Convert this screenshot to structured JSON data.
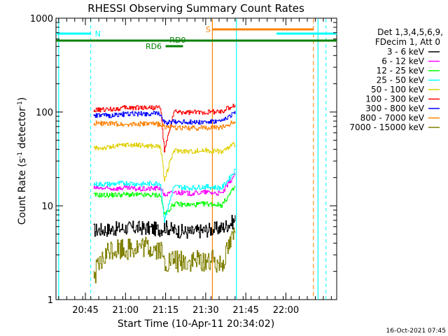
{
  "chart_data": {
    "type": "line",
    "title": "RHESSI Observing Summary Count Rates",
    "xlabel": "Start Time (10-Apr-11 20:34:02)",
    "ylabel_main": "Count Rate (s",
    "ylabel_sup1": "-1",
    "ylabel_mid": " detector",
    "ylabel_sup2": "-1",
    "ylabel_end": ")",
    "y_scale": "log",
    "ylim": [
      1,
      1000
    ],
    "xlim_minutes": [
      0,
      105
    ],
    "x_ticks": [
      {
        "minute": 11,
        "label": "20:45"
      },
      {
        "minute": 26,
        "label": "21:00"
      },
      {
        "minute": 41,
        "label": "21:15"
      },
      {
        "minute": 56,
        "label": "21:30"
      },
      {
        "minute": 71,
        "label": "21:45"
      },
      {
        "minute": 86,
        "label": "22:00"
      }
    ],
    "y_ticks": [
      {
        "value": 1,
        "label": "1"
      },
      {
        "value": 10,
        "label": "10"
      },
      {
        "value": 100,
        "label": "100"
      },
      {
        "value": 1000,
        "label": "1000"
      }
    ],
    "legend_header": [
      "Det 1,3,4,5,6,9,",
      "FDecim 1, Att 0"
    ],
    "legend_placement": "right",
    "series": [
      {
        "name": "3 - 6 keV",
        "color": "#000000",
        "x": [
          14,
          20,
          26,
          32,
          39,
          40.5,
          44,
          50,
          56,
          62,
          67
        ],
        "y": [
          5.5,
          5.6,
          5.8,
          5.8,
          5.6,
          6,
          5.5,
          5.2,
          5.5,
          5.8,
          7
        ]
      },
      {
        "name": "6 - 12 keV",
        "color": "#ff00ff",
        "x": [
          14,
          20,
          26,
          32,
          39,
          40.5,
          44,
          50,
          56,
          62,
          67
        ],
        "y": [
          15.5,
          15.2,
          15.5,
          15,
          15.5,
          13,
          14,
          13.5,
          14,
          13.5,
          22
        ]
      },
      {
        "name": "12 - 25 keV",
        "color": "#00ff00",
        "x": [
          14,
          20,
          26,
          32,
          39,
          40.5,
          44,
          50,
          56,
          62,
          67
        ],
        "y": [
          13,
          13,
          13.2,
          13,
          13,
          8,
          10.5,
          10.2,
          10.5,
          10.2,
          16
        ]
      },
      {
        "name": "25 - 50 keV",
        "color": "#00ffff",
        "x": [
          14,
          20,
          26,
          32,
          39,
          40.5,
          44,
          50,
          56,
          62,
          67
        ],
        "y": [
          17,
          17,
          17.5,
          17,
          17.5,
          7,
          16,
          15.5,
          16,
          15.5,
          24
        ]
      },
      {
        "name": "50 - 100 keV",
        "color": "#e0d000",
        "x": [
          14,
          20,
          26,
          32,
          39,
          40.5,
          44,
          50,
          56,
          62,
          67
        ],
        "y": [
          41,
          42,
          45,
          44,
          43,
          19,
          39,
          38,
          39,
          38,
          46
        ]
      },
      {
        "name": "100 - 300 keV",
        "color": "#ff0000",
        "x": [
          14,
          20,
          26,
          32,
          39,
          40.5,
          44,
          50,
          56,
          62,
          67
        ],
        "y": [
          104,
          107,
          111,
          112,
          112,
          38,
          100,
          99,
          100,
          101,
          120
        ]
      },
      {
        "name": "300 - 800 keV",
        "color": "#0000ff",
        "x": [
          14,
          20,
          26,
          32,
          39,
          40.5,
          44,
          50,
          56,
          62,
          67
        ],
        "y": [
          91,
          92,
          95,
          96,
          96,
          76,
          79,
          78,
          78,
          79,
          100
        ]
      },
      {
        "name": "800 - 7000 keV",
        "color": "#ff8000",
        "x": [
          14,
          20,
          26,
          32,
          39,
          40.5,
          44,
          50,
          56,
          62,
          67
        ],
        "y": [
          76,
          75,
          74,
          75,
          74,
          70,
          68,
          67,
          68,
          68,
          80
        ]
      },
      {
        "name": "7000 - 15000 keV",
        "color": "#808000",
        "x": [
          14,
          20,
          26,
          32,
          39,
          40.5,
          44,
          50,
          56,
          62,
          67
        ],
        "y": [
          1.8,
          3.4,
          3.5,
          3.6,
          3.4,
          2.4,
          2.6,
          2.5,
          2.6,
          2.5,
          5.5
        ]
      }
    ],
    "annotations": [
      {
        "text": "N",
        "color": "#00ffff"
      },
      {
        "text": "S",
        "color": "#ff8000"
      },
      {
        "text": "RD0",
        "color": "#008000"
      },
      {
        "text": "RD6",
        "color": "#008000"
      }
    ],
    "footer_date": "16-Oct-2021 07:45"
  }
}
